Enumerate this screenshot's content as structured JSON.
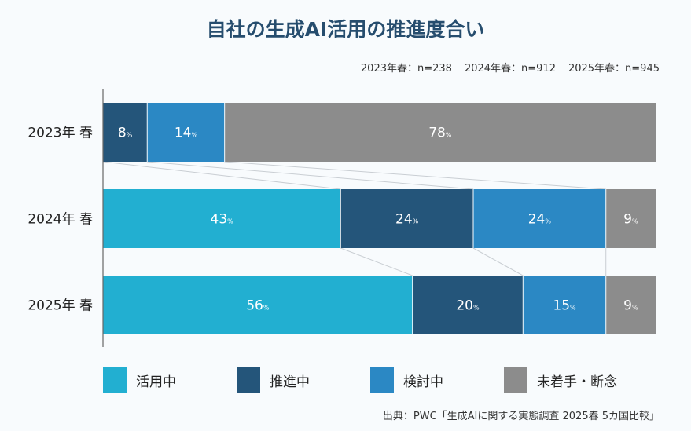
{
  "chart_data": {
    "type": "bar",
    "orientation": "horizontal",
    "stacked": true,
    "normalized": true,
    "title": "自社の生成AI活用の推進度合い",
    "sample_sizes": [
      "2023年春：n=238",
      "2024年春：n=912",
      "2025年春：n=945"
    ],
    "categories": [
      "2023年 春",
      "2024年 春",
      "2025年 春"
    ],
    "unit": "%",
    "series": [
      {
        "name": "活用中",
        "color": "#22afd1",
        "values": [
          0,
          43,
          56
        ]
      },
      {
        "name": "推進中",
        "color": "#24557a",
        "values": [
          8,
          24,
          20
        ]
      },
      {
        "name": "検討中",
        "color": "#2b88c4",
        "values": [
          14,
          24,
          15
        ]
      },
      {
        "name": "未着手・断念",
        "color": "#8c8c8c",
        "values": [
          78,
          9,
          9
        ]
      }
    ],
    "source": "出典：PWC「生成AIに関する実態調査 2025春 5カ国比較」"
  }
}
